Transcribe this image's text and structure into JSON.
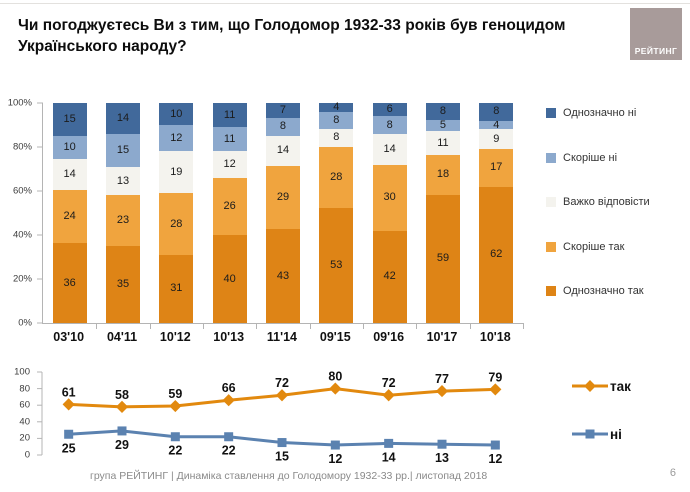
{
  "header": {
    "title": "Чи погоджуєтесь Ви з тим, що Голодомор 1932-33 років був геноцидом Українського народу?",
    "logo_text": "РЕЙТИНГ"
  },
  "colors": {
    "definitely_no": "#41699b",
    "rather_no": "#8ca9cd",
    "hard_to_say": "#f4f3ee",
    "rather_yes": "#f0a43e",
    "definitely_yes": "#de8416",
    "line_yes": "#e2890e",
    "line_no": "#5b82b0",
    "axis": "#b4b4b4"
  },
  "chart_data": [
    {
      "type": "bar",
      "subtype": "stacked-percent",
      "categories": [
        "03'10",
        "04'11",
        "10'12",
        "10'13",
        "11'14",
        "09'15",
        "09'16",
        "10'17",
        "10'18"
      ],
      "series": [
        {
          "name": "Однозначно так",
          "color_key": "definitely_yes",
          "values": [
            36,
            35,
            31,
            40,
            43,
            53,
            42,
            59,
            62
          ]
        },
        {
          "name": "Скоріше так",
          "color_key": "rather_yes",
          "values": [
            24,
            23,
            28,
            26,
            29,
            28,
            30,
            18,
            17
          ]
        },
        {
          "name": "Важко відповісти",
          "color_key": "hard_to_say",
          "values": [
            14,
            13,
            19,
            12,
            14,
            8,
            14,
            11,
            9
          ]
        },
        {
          "name": "Скоріше ні",
          "color_key": "rather_no",
          "values": [
            10,
            15,
            12,
            11,
            8,
            8,
            8,
            5,
            4
          ]
        },
        {
          "name": "Однозначно ні",
          "color_key": "definitely_no",
          "values": [
            15,
            14,
            10,
            11,
            7,
            4,
            6,
            8,
            8
          ]
        }
      ],
      "y_ticks": [
        "100%",
        "80%",
        "60%",
        "40%",
        "20%",
        "0%"
      ],
      "ylim": [
        0,
        100
      ],
      "legend_order_displayed": [
        "Однозначно ні",
        "Скоріше ні",
        "Важко відповісти",
        "Скоріше так",
        "Однозначно так"
      ],
      "legend_position": "right",
      "grid": false
    },
    {
      "type": "line",
      "categories": [
        "03'10",
        "04'11",
        "10'12",
        "10'13",
        "11'14",
        "09'15",
        "09'16",
        "10'17",
        "10'18"
      ],
      "series": [
        {
          "name": "так",
          "color_key": "line_yes",
          "marker": "diamond",
          "label_position": "above",
          "values": [
            61,
            58,
            59,
            66,
            72,
            80,
            72,
            77,
            79
          ]
        },
        {
          "name": "ні",
          "color_key": "line_no",
          "marker": "square",
          "label_position": "below",
          "values": [
            25,
            29,
            22,
            22,
            15,
            12,
            14,
            13,
            12
          ]
        }
      ],
      "y_ticks": [
        100,
        80,
        60,
        40,
        20,
        0
      ],
      "ylim": [
        0,
        100
      ],
      "legend_position": "right",
      "grid": false
    }
  ],
  "footer": {
    "caption": "група РЕЙТИНГ  |  Динаміка ставлення до Голодомору 1932-33 рр.|  листопад  2018",
    "page_number": "6"
  }
}
